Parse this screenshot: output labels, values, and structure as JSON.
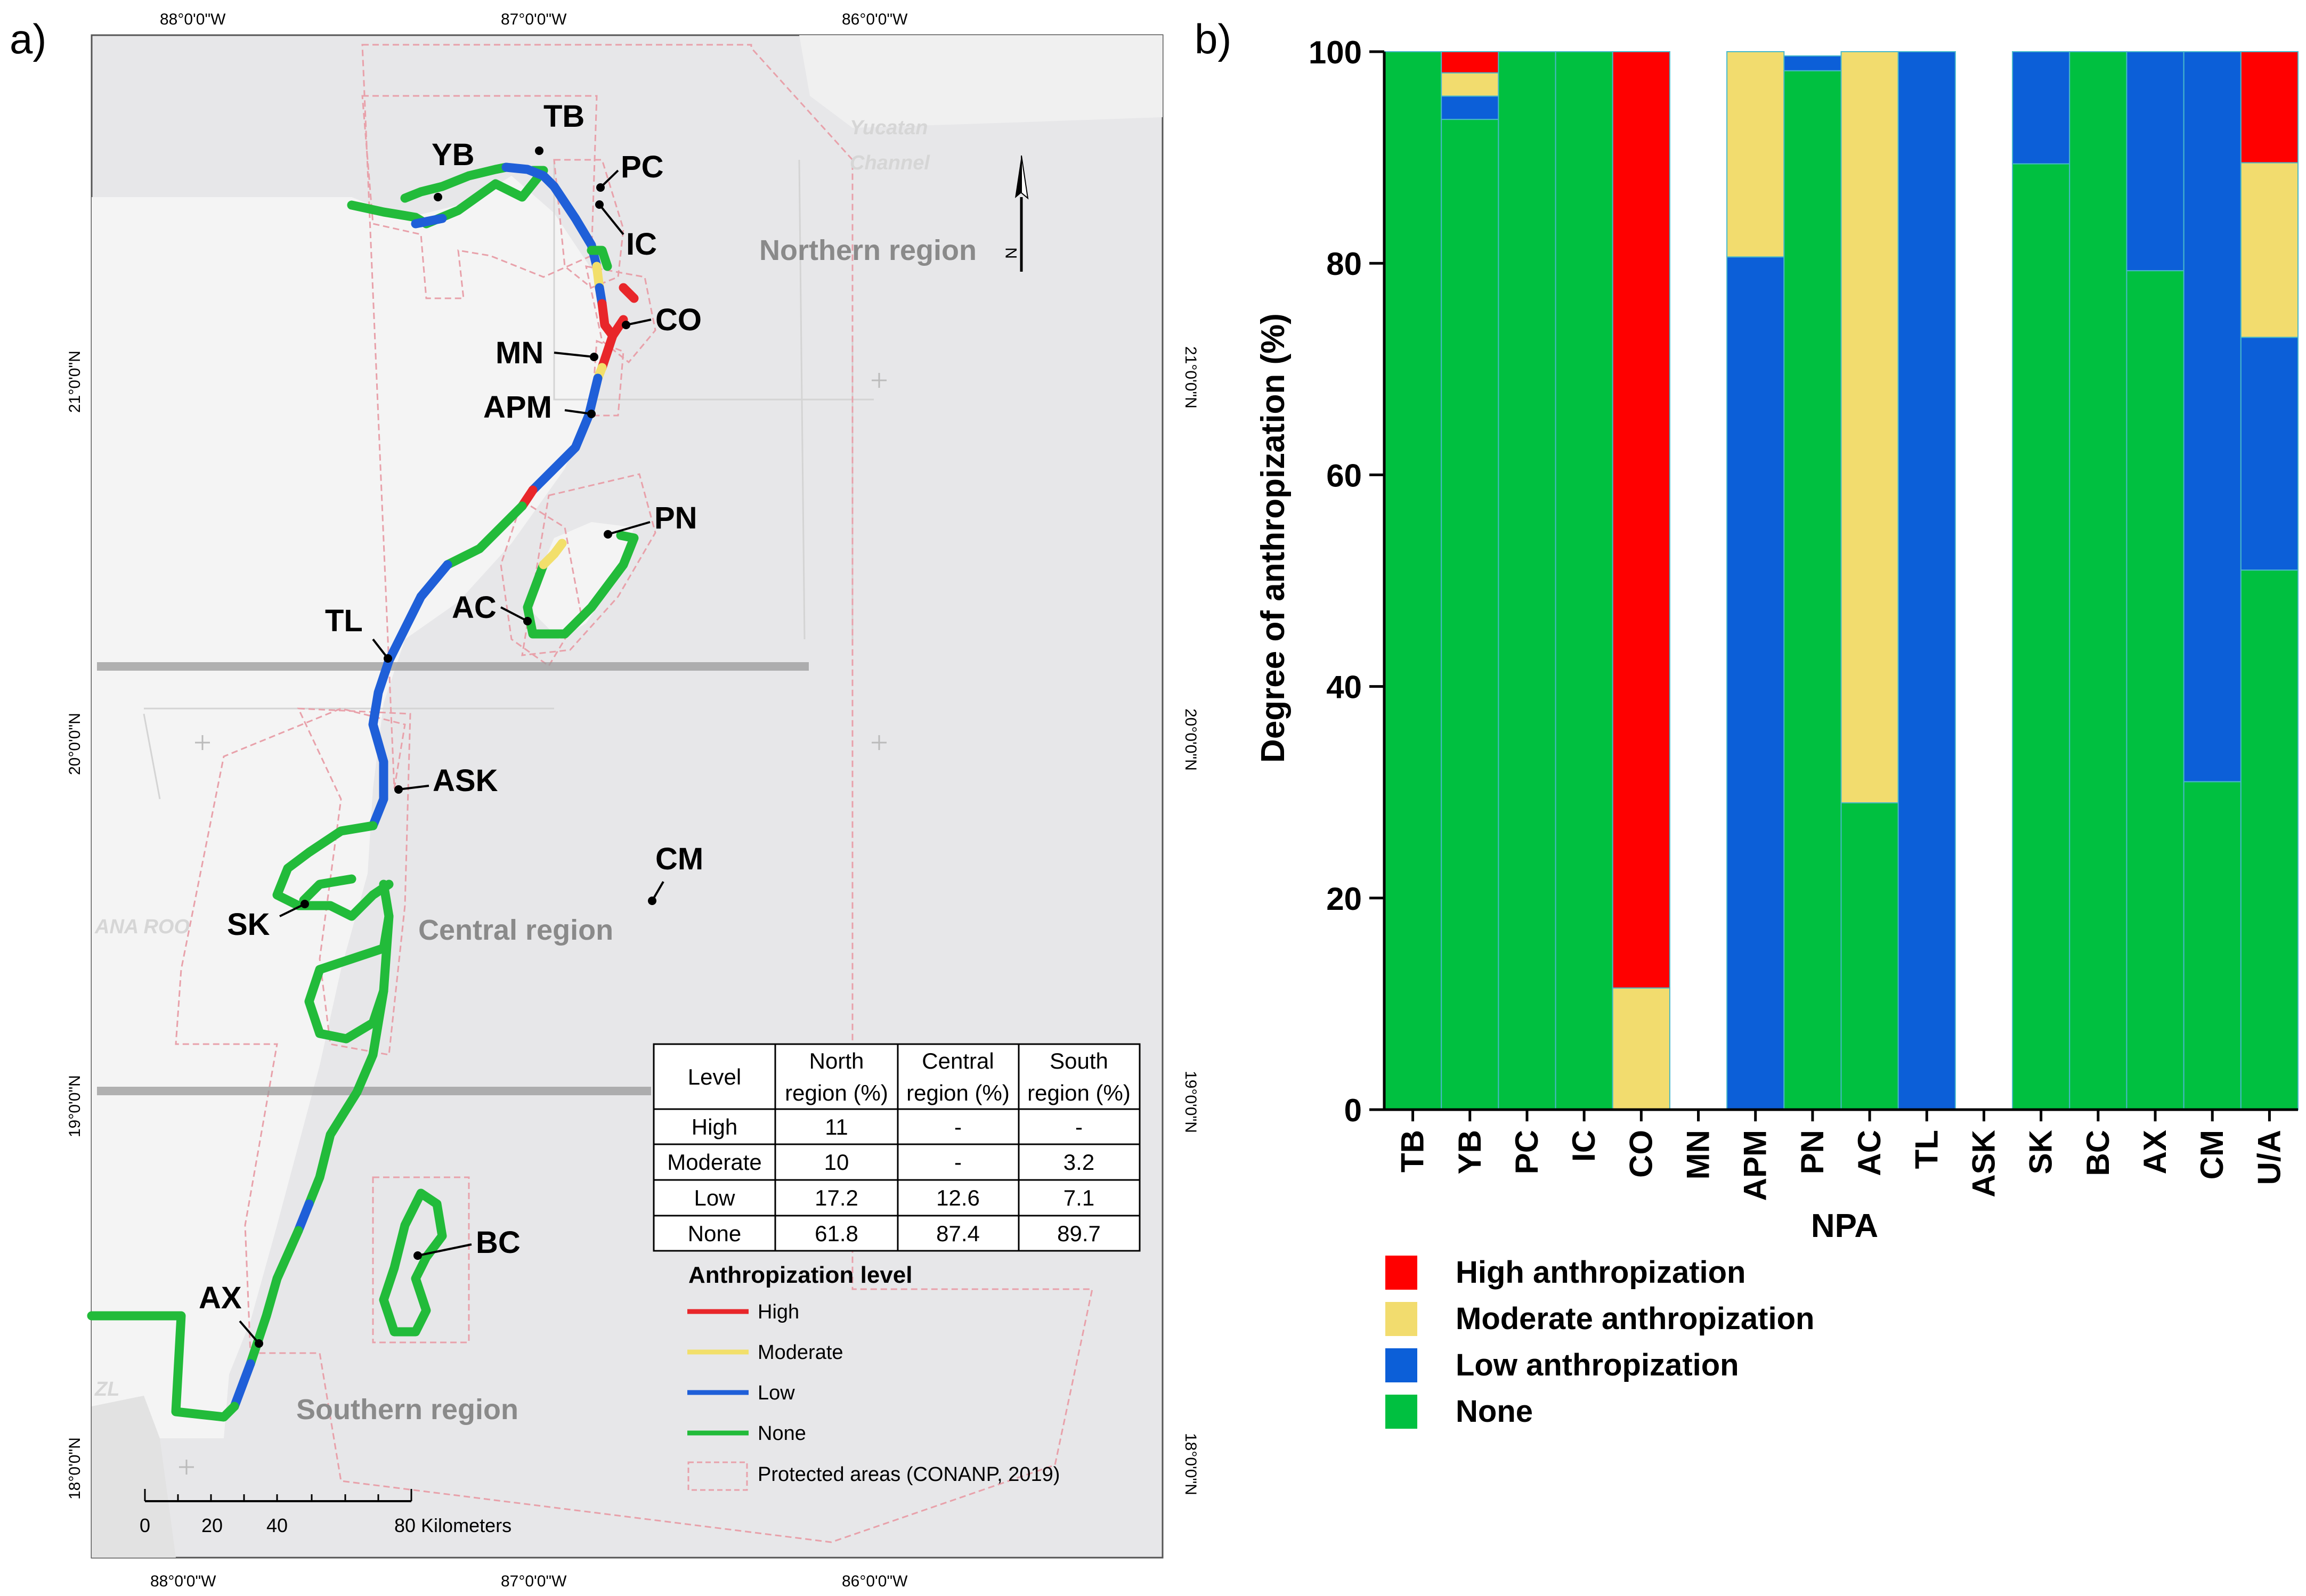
{
  "panel_a": {
    "label": "a)",
    "lon_labels": [
      "88°0'0\"W",
      "87°0'0\"W",
      "86°0'0\"W"
    ],
    "lat_labels": [
      "21°0'0\"N",
      "20°0'0\"N",
      "19°0'0\"N",
      "18°0'0\"N"
    ],
    "places": [
      "TB",
      "YB",
      "PC",
      "IC",
      "CO",
      "MN",
      "APM",
      "PN",
      "AC",
      "TL",
      "ASK",
      "CM",
      "SK",
      "BC",
      "AX"
    ],
    "regions": {
      "north": "Northern region",
      "central": "Central region",
      "south": "Southern region"
    },
    "ghost_labels": {
      "channel_1": "Yucatan",
      "channel_2": "Channel",
      "state": "ANA ROO",
      "country": "ZL"
    },
    "north_arrow_letter": "N",
    "table": {
      "headers": [
        "Level",
        "North region (%)",
        "Central region (%)",
        "South region (%)"
      ],
      "header_lines": [
        [
          "Level"
        ],
        [
          "North",
          "region (%)"
        ],
        [
          "Central",
          "region (%)"
        ],
        [
          "South",
          "region (%)"
        ]
      ],
      "rows": [
        [
          "High",
          "11",
          "-",
          "-"
        ],
        [
          "Moderate",
          "10",
          "-",
          "3.2"
        ],
        [
          "Low",
          "17.2",
          "12.6",
          "7.1"
        ],
        [
          "None",
          "61.8",
          "87.4",
          "89.7"
        ]
      ]
    },
    "legend": {
      "title": "Anthropization level",
      "items": [
        {
          "label": "High",
          "color": "#e8262a"
        },
        {
          "label": "Moderate",
          "color": "#f2df6b"
        },
        {
          "label": "Low",
          "color": "#1f5fd8"
        },
        {
          "label": "None",
          "color": "#22bb3a"
        }
      ],
      "protected": "Protected areas (CONANP, 2019)"
    },
    "scale_bar": {
      "ticks": [
        "0",
        "20",
        "40"
      ],
      "end_label": "80 Kilometers"
    }
  },
  "chart_data": {
    "type": "bar",
    "stacked": true,
    "panel_label": "b)",
    "title": "",
    "xlabel": "NPA",
    "ylabel": "Degree of anthropization (%)",
    "ylim": [
      0,
      100
    ],
    "yticks": [
      0,
      20,
      40,
      60,
      80,
      100
    ],
    "categories": [
      "TB",
      "YB",
      "PC",
      "IC",
      "CO",
      "MN",
      "APM",
      "PN",
      "AC",
      "TL",
      "ASK",
      "SK",
      "BC",
      "AX",
      "CM",
      "U/A"
    ],
    "series": [
      {
        "name": "None",
        "color": "#00c040",
        "values": [
          100,
          93.6,
          100,
          100,
          0,
          0,
          0,
          98.2,
          29,
          0,
          0,
          89.4,
          100,
          79.3,
          31,
          51
        ]
      },
      {
        "name": "Low anthropization",
        "color": "#0c5fd8",
        "values": [
          0,
          2.2,
          0,
          0,
          0,
          0,
          80.6,
          1.4,
          0,
          100,
          0,
          10.6,
          0,
          20.7,
          69,
          22
        ]
      },
      {
        "name": "Moderate anthropization",
        "color": "#f2dc6e",
        "values": [
          0,
          2.2,
          0,
          0,
          11.5,
          0,
          19.4,
          0,
          71,
          0,
          0,
          0,
          0,
          0,
          0,
          16.5
        ]
      },
      {
        "name": "High anthropization",
        "color": "#ff0000",
        "values": [
          0,
          2,
          0,
          0,
          88.5,
          0,
          0,
          0,
          0,
          0,
          0,
          0,
          0,
          0,
          0,
          10.5
        ]
      }
    ],
    "legend_order": [
      "High anthropization",
      "Moderate anthropization",
      "Low anthropization",
      "None"
    ],
    "legend_position": "bottom-left"
  }
}
